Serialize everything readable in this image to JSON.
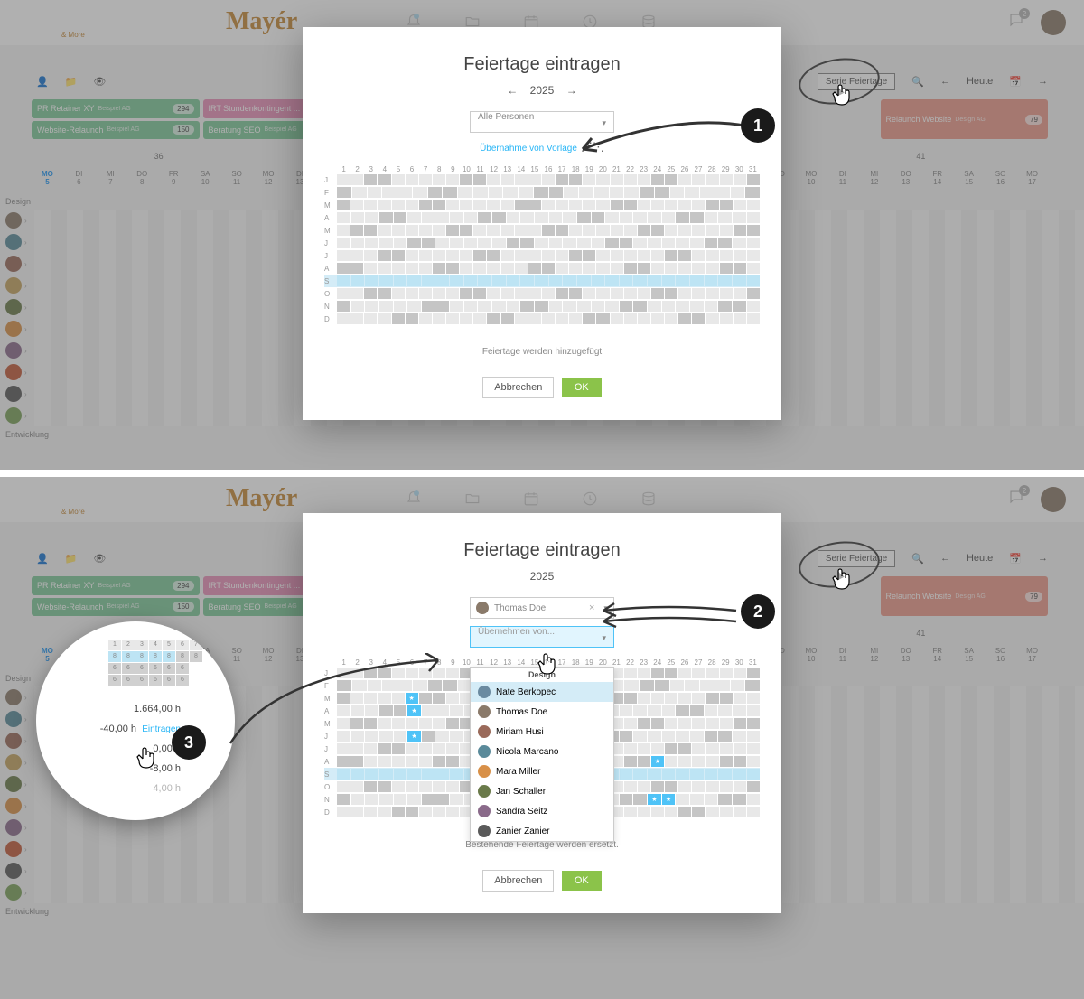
{
  "brand": {
    "name": "Mayér",
    "sub": "& More"
  },
  "header_icons": [
    "bell",
    "folder",
    "calendar",
    "clock",
    "database"
  ],
  "chat_badge": "2",
  "toolbar": {
    "serie_btn": "Serie Feiertage",
    "heute": "Heute"
  },
  "projects": {
    "a": {
      "title": "PR Retainer XY",
      "client": "Beispiel AG",
      "badge": "294",
      "color": "#7ec89a"
    },
    "b": {
      "title": "Website-Relaunch",
      "client": "Beispiel AG",
      "badge": "150",
      "color": "#7ec89a"
    },
    "c": {
      "title": "IRT Stundenkontingent ...",
      "client": "Muster AG",
      "badge": "78",
      "color": "#e890b8"
    },
    "d": {
      "title": "Beratung SEO",
      "client": "Beispiel AG",
      "badge": "40",
      "color": "#7ec89a"
    },
    "e": {
      "title": "Relaunch Website",
      "client": "Design AG",
      "badge": "79",
      "color": "#ec9a8a"
    }
  },
  "weeks": [
    "36",
    "37",
    "40",
    "41"
  ],
  "days1": [
    {
      "d": "MO",
      "n": "5",
      "today": true
    },
    {
      "d": "DI",
      "n": "6"
    },
    {
      "d": "MI",
      "n": "7"
    },
    {
      "d": "DO",
      "n": "8"
    },
    {
      "d": "FR",
      "n": "9"
    },
    {
      "d": "SA",
      "n": "10"
    },
    {
      "d": "SO",
      "n": "11"
    },
    {
      "d": "MO",
      "n": "12"
    },
    {
      "d": "DI",
      "n": "13"
    },
    {
      "d": "MI",
      "n": "14"
    },
    {
      "d": "DO",
      "n": "15"
    },
    {
      "d": "FR",
      "n": "16"
    },
    {
      "d": "SA",
      "n": "17"
    }
  ],
  "days2": [
    {
      "d": "SA",
      "n": "1"
    },
    {
      "d": "SO",
      "n": "2"
    },
    {
      "d": "MO",
      "n": "3"
    },
    {
      "d": "DI",
      "n": "4"
    },
    {
      "d": "MI",
      "n": "5"
    },
    {
      "d": "DO",
      "n": "6"
    },
    {
      "d": "FR",
      "n": "7"
    },
    {
      "d": "SA",
      "n": "8"
    },
    {
      "d": "SO",
      "n": "9"
    },
    {
      "d": "MO",
      "n": "10"
    },
    {
      "d": "DI",
      "n": "11"
    },
    {
      "d": "MI",
      "n": "12"
    },
    {
      "d": "DO",
      "n": "13"
    },
    {
      "d": "FR",
      "n": "14"
    },
    {
      "d": "SA",
      "n": "15"
    },
    {
      "d": "SO",
      "n": "16"
    },
    {
      "d": "MO",
      "n": "17"
    }
  ],
  "section_design": "Design",
  "section_dev": "Entwicklung",
  "avatars": [
    "#8a7a6a",
    "#5a8a9a",
    "#9a6a5a",
    "#c4a260",
    "#6a7a4a",
    "#d89048",
    "#8a6a8a",
    "#c25a3a",
    "#5a5a5a",
    "#7aa05a"
  ],
  "modal": {
    "title": "Feiertage eintragen",
    "year": "2025",
    "person_all": "Alle Personen",
    "template_link": "Übernahme von Vorlage",
    "status1": "Feiertage werden hinzugefügt",
    "status2": "Bestehende Feiertage werden ersetzt.",
    "cancel": "Abbrechen",
    "ok": "OK",
    "months": [
      "J",
      "F",
      "M",
      "A",
      "M",
      "J",
      "J",
      "A",
      "S",
      "O",
      "N",
      "D"
    ],
    "days": [
      "1",
      "2",
      "3",
      "4",
      "5",
      "6",
      "7",
      "8",
      "9",
      "10",
      "11",
      "12",
      "13",
      "14",
      "15",
      "16",
      "17",
      "18",
      "19",
      "20",
      "21",
      "22",
      "23",
      "24",
      "25",
      "26",
      "27",
      "28",
      "29",
      "30",
      "31"
    ],
    "selected_person": "Thomas Doe",
    "ubernehmen_placeholder": "Übernehmen von...",
    "dd_header": "Design",
    "dd_items": [
      {
        "name": "Nate Berkopec",
        "color": "#6a8aa0"
      },
      {
        "name": "Thomas Doe",
        "color": "#8a7a6a"
      },
      {
        "name": "Miriam Husi",
        "color": "#9a6a5a"
      },
      {
        "name": "Nicola Marcano",
        "color": "#5a8a9a"
      },
      {
        "name": "Mara Miller",
        "color": "#d89048"
      },
      {
        "name": "Jan Schaller",
        "color": "#6a7a4a"
      },
      {
        "name": "Sandra Seitz",
        "color": "#8a6a8a"
      },
      {
        "name": "Zanier Zanier",
        "color": "#5a5a5a"
      }
    ]
  },
  "zoom": {
    "days": [
      "1",
      "2",
      "3",
      "4",
      "5",
      "6",
      "7"
    ],
    "rows_extra": [
      [
        "6",
        "6",
        "6",
        "6",
        "6",
        "6"
      ],
      [
        "6",
        "6",
        "6",
        "6",
        "6",
        "6"
      ]
    ],
    "val1": "1.664,00 h",
    "val2": "-40,00 h",
    "val2_link": "Eintragen",
    "val3": "0,00 h",
    "val4": "-8,00 h",
    "val5": "4,00 h"
  },
  "steps": {
    "s1": "1",
    "s2": "2",
    "s3": "3"
  },
  "cal_patterns": {
    "m1": [
      "c1 c1 c2 c2 c1 c1 c1 c1 c1 c2 c2 c1 c1 c1 c1 c1 c2 c2 c1 c1 c1 c1 c1 c2 c2 c1 c1 c1 c1 c1 c2",
      "c2 c1 c1 c1 c1 c1 c2 c2 c1 c1 c1 c1 c1 c2 c2 c1 c1 c1 c1 c1 c2 c2 c1 c1 c1 c1 c1 c2",
      "c2 c1 c1 c1 c1 c1 c2 c2 c1 c1 c1 c1 c1 c2 c2 c1 c1 c1 c1 c1 c2 c2 c1 c1 c1 c1 c1 c2 c2 c1 c1",
      "c1 c1 c1 c2 c2 c1 c1 c1 c1 c1 c2 c2 c1 c1 c1 c1 c1 c2 c2 c1 c1 c1 c1 c1 c2 c2 c1 c1 c1 c1",
      "c1 c2 c2 c1 c1 c1 c1 c1 c2 c2 c1 c1 c1 c1 c1 c2 c2 c1 c1 c1 c1 c1 c2 c2 c1 c1 c1 c1 c1 c2 c2",
      "c1 c1 c1 c1 c1 c2 c2 c1 c1 c1 c1 c1 c2 c2 c1 c1 c1 c1 c1 c2 c2 c1 c1 c1 c1 c1 c2 c2 c1 c1",
      "c1 c1 c1 c2 c2 c1 c1 c1 c1 c1 c2 c2 c1 c1 c1 c1 c1 c2 c2 c1 c1 c1 c1 c1 c2 c2 c1 c1 c1 c1 c1",
      "c2 c2 c1 c1 c1 c1 c1 c2 c2 c1 c1 c1 c1 c1 c2 c2 c1 c1 c1 c1 c1 c2 c2 c1 c1 c1 c1 c1 c2 c2 c1",
      "hl hl hl hl hl hl hl hl hl hl hl hl hl hl hl hl hl hl hl hl hl hl hl hl hl hl hl hl hl hl",
      "c1 c1 c2 c2 c1 c1 c1 c1 c1 c2 c2 c1 c1 c1 c1 c1 c2 c2 c1 c1 c1 c1 c1 c2 c2 c1 c1 c1 c1 c1 c2",
      "c2 c1 c1 c1 c1 c1 c2 c2 c1 c1 c1 c1 c1 c2 c2 c1 c1 c1 c1 c1 c2 c2 c1 c1 c1 c1 c1 c2 c2 c1",
      "c1 c1 c1 c1 c2 c2 c1 c1 c1 c1 c1 c2 c2 c1 c1 c1 c1 c1 c2 c2 c1 c1 c1 c1 c1 c2 c2 c1 c1 c1 c1"
    ],
    "m2": [
      "c1 c1 c2 c2 c1 c1 c1 c1 c1 c2 c2 c1 c1 c1 c1 c1 c2 c2 c1 c1 c1 c1 c1 c2 c2 c1 c1 c1 c1 c1 c2",
      "c2 c1 c1 c1 c1 c1 c2 c2 c1 c1 c1 c1 c1 c2 c2 c1 c1 c1 c1 c1 c2 c2 c1 c1 c1 c1 c1 c2",
      "c2 c1 c1 c1 c1 star c2 c2 c1 c1 c1 c1 c1 c2 c2 c1 c1 c1 c1 c1 c2 c2 c1 c1 c1 c1 c1 c2 c2 c1 c1",
      "c1 c1 c1 c2 c2 star c1 c1 c1 c1 c2 c2 c1 c1 c1 c1 c1 c2 c2 c1 c1 c1 c1 c1 c2 c2 c1 c1 c1 c1",
      "c1 c2 c2 c1 c1 c1 c1 c1 c2 c2 c1 c1 c1 c1 c1 c2 c2 c1 c1 c1 c1 c1 c2 c2 c1 c1 c1 c1 c1 c2 c2",
      "c1 c1 c1 c1 c1 star c2 c1 c1 c1 c1 c1 c2 c2 c1 c1 c1 c1 c1 c2 c2 c1 c1 c1 c1 c1 c2 c2 c1 c1",
      "c1 c1 c1 c2 c2 c1 c1 c1 c1 c1 c2 c2 c1 c1 c1 c1 c1 c2 c2 c1 c1 c1 c1 c1 c2 c2 c1 c1 c1 c1 c1",
      "c2 c2 c1 c1 c1 c1 c1 c2 c2 c1 c1 c1 c1 c1 c2 c2 c1 c1 c1 c1 c1 c2 c2 star c1 c1 c1 c1 c2 c2 c1",
      "hl hl hl hl hl hl hl hl hl hl hl hl hl hl hl hl hl hl hl hl hl hl hl hl hl hl hl hl hl hl",
      "c1 c1 c2 c2 c1 c1 c1 c1 c1 c2 c2 c1 c1 c1 c1 c1 c2 c2 c1 c1 c1 c1 c1 c2 c2 c1 c1 c1 c1 c1 c2",
      "c2 c1 c1 c1 c1 c1 c2 c2 c1 c1 c1 c1 c1 c2 c2 c1 c1 c1 c1 c1 c2 c2 star star c1 c1 c1 c2 c2 c1",
      "c1 c1 c1 c1 c2 c2 c1 c1 c1 c1 c1 c2 c2 c1 c1 c1 c1 c1 c2 c2 c1 c1 c1 c1 c1 c2 c2 c1 c1 c1 c1"
    ]
  }
}
